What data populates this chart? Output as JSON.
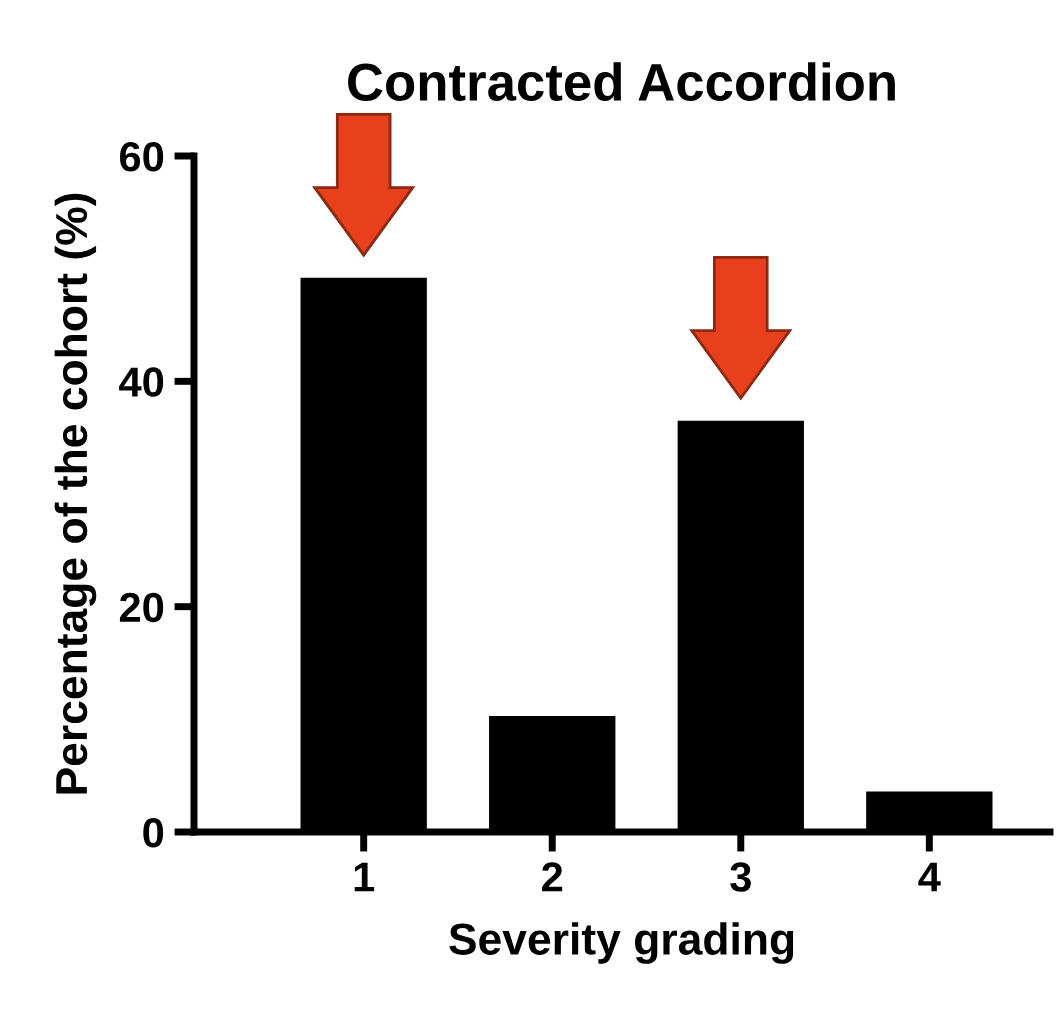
{
  "chart_data": {
    "type": "bar",
    "title": "Contracted Accordion",
    "xlabel": "Severity grading",
    "ylabel": "Percentage of the cohort (%)",
    "categories": [
      "1",
      "2",
      "3",
      "4"
    ],
    "values": [
      49.2,
      10.3,
      36.5,
      3.6
    ],
    "color": "#000000",
    "ylim": [
      0,
      60
    ],
    "yticks": [
      0,
      20,
      40,
      60
    ],
    "grid": false,
    "legend": false
  }
}
